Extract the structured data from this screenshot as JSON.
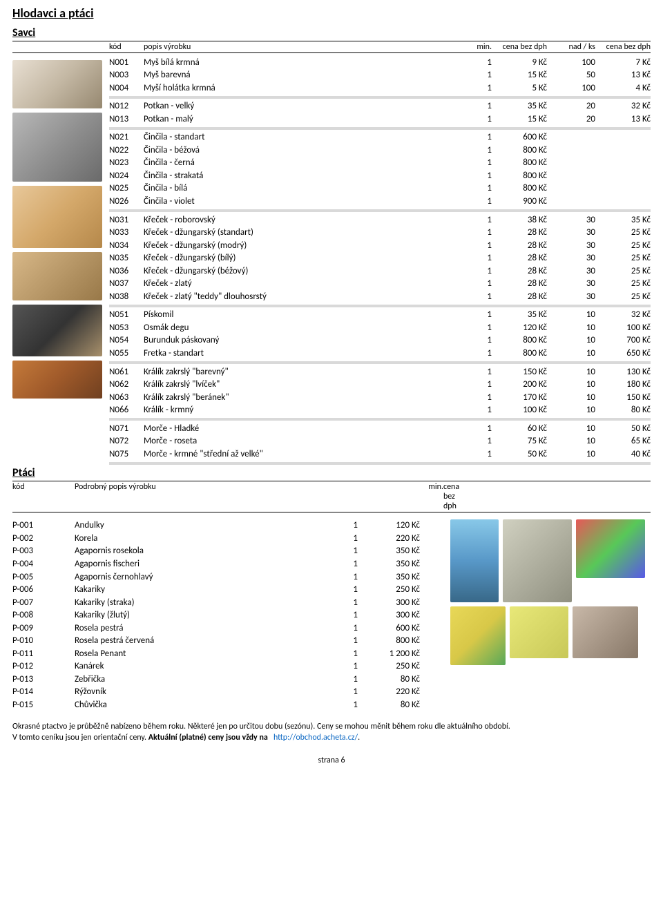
{
  "title": "Hlodavci a ptáci",
  "savci": {
    "title": "Savci",
    "header": {
      "kod": "kód",
      "popis": "popis výrobku",
      "min": "min.",
      "cena": "cena bez dph",
      "nad": "nad / ks",
      "cena2": "cena bez dph"
    },
    "groups": [
      [
        {
          "kod": "N001",
          "popis": "Myš bílá krmná",
          "min": "1",
          "cena": "9 Kč",
          "nad": "100",
          "cena2": "7 Kč"
        },
        {
          "kod": "N003",
          "popis": "Myš barevná",
          "min": "1",
          "cena": "15 Kč",
          "nad": "50",
          "cena2": "13 Kč"
        },
        {
          "kod": "N004",
          "popis": "Myší holátka krmná",
          "min": "1",
          "cena": "5 Kč",
          "nad": "100",
          "cena2": "4 Kč"
        }
      ],
      [
        {
          "kod": "N012",
          "popis": "Potkan - velký",
          "min": "1",
          "cena": "35 Kč",
          "nad": "20",
          "cena2": "32 Kč"
        },
        {
          "kod": "N013",
          "popis": "Potkan -  malý",
          "min": "1",
          "cena": "15 Kč",
          "nad": "20",
          "cena2": "13 Kč"
        }
      ],
      [
        {
          "kod": "N021",
          "popis": "Činčila - standart",
          "min": "1",
          "cena": "600 Kč",
          "nad": "",
          "cena2": ""
        },
        {
          "kod": "N022",
          "popis": "Činčila - béžová",
          "min": "1",
          "cena": "800 Kč",
          "nad": "",
          "cena2": ""
        },
        {
          "kod": "N023",
          "popis": "Činčila - černá",
          "min": "1",
          "cena": "800 Kč",
          "nad": "",
          "cena2": ""
        },
        {
          "kod": "N024",
          "popis": "Činčila - strakatá",
          "min": "1",
          "cena": "800 Kč",
          "nad": "",
          "cena2": ""
        },
        {
          "kod": "N025",
          "popis": "Činčila - bílá",
          "min": "1",
          "cena": "800 Kč",
          "nad": "",
          "cena2": ""
        },
        {
          "kod": "N026",
          "popis": "Činčila - violet",
          "min": "1",
          "cena": "900 Kč",
          "nad": "",
          "cena2": ""
        }
      ],
      [
        {
          "kod": "N031",
          "popis": "Křeček - roborovský",
          "min": "1",
          "cena": "38 Kč",
          "nad": "30",
          "cena2": "35 Kč"
        },
        {
          "kod": "N033",
          "popis": "Křeček - džungarský (standart)",
          "min": "1",
          "cena": "28 Kč",
          "nad": "30",
          "cena2": "25 Kč"
        },
        {
          "kod": "N034",
          "popis": "Křeček - džungarský (modrý)",
          "min": "1",
          "cena": "28 Kč",
          "nad": "30",
          "cena2": "25 Kč"
        },
        {
          "kod": "N035",
          "popis": "Křeček - džungarský (bílý)",
          "min": "1",
          "cena": "28 Kč",
          "nad": "30",
          "cena2": "25 Kč"
        },
        {
          "kod": "N036",
          "popis": "Křeček - džungarský (béžový)",
          "min": "1",
          "cena": "28 Kč",
          "nad": "30",
          "cena2": "25 Kč"
        },
        {
          "kod": "N037",
          "popis": "Křeček - zlatý",
          "min": "1",
          "cena": "28 Kč",
          "nad": "30",
          "cena2": "25 Kč"
        },
        {
          "kod": "N038",
          "popis": "Křeček - zlatý \"teddy\" dlouhosrstý",
          "min": "1",
          "cena": "28 Kč",
          "nad": "30",
          "cena2": "25 Kč"
        }
      ],
      [
        {
          "kod": "N051",
          "popis": "Pískomil",
          "min": "1",
          "cena": "35 Kč",
          "nad": "10",
          "cena2": "32 Kč"
        },
        {
          "kod": "N053",
          "popis": "Osmák degu",
          "min": "1",
          "cena": "120 Kč",
          "nad": "10",
          "cena2": "100 Kč"
        },
        {
          "kod": "N054",
          "popis": "Burunduk páskovaný",
          "min": "1",
          "cena": "800 Kč",
          "nad": "10",
          "cena2": "700 Kč"
        },
        {
          "kod": "N055",
          "popis": "Fretka - standart",
          "min": "1",
          "cena": "800 Kč",
          "nad": "10",
          "cena2": "650 Kč"
        }
      ],
      [
        {
          "kod": "N061",
          "popis": "Králík zakrslý \"barevný\"",
          "min": "1",
          "cena": "150 Kč",
          "nad": "10",
          "cena2": "130 Kč"
        },
        {
          "kod": "N062",
          "popis": "Králík zakrslý \"lvíček\"",
          "min": "1",
          "cena": "200 Kč",
          "nad": "10",
          "cena2": "180 Kč"
        },
        {
          "kod": "N063",
          "popis": "Králík zakrslý \"beránek\"",
          "min": "1",
          "cena": "170 Kč",
          "nad": "10",
          "cena2": "150 Kč"
        },
        {
          "kod": "N066",
          "popis": "Králík - krmný",
          "min": "1",
          "cena": "100 Kč",
          "nad": "10",
          "cena2": "80 Kč"
        }
      ],
      [
        {
          "kod": "N071",
          "popis": "Morče - Hladké",
          "min": "1",
          "cena": "60 Kč",
          "nad": "10",
          "cena2": "50 Kč"
        },
        {
          "kod": "N072",
          "popis": "Morče - roseta",
          "min": "1",
          "cena": "75 Kč",
          "nad": "10",
          "cena2": "65 Kč"
        },
        {
          "kod": "N075",
          "popis": "Morče - krmné \"střední až velké\"",
          "min": "1",
          "cena": "50 Kč",
          "nad": "10",
          "cena2": "40 Kč"
        }
      ]
    ]
  },
  "ptaci": {
    "title": "Ptáci",
    "header": {
      "kod": "kód",
      "popis": "Podrobný popis výrobku",
      "min": "min.",
      "cena": "cena bez dph"
    },
    "rows": [
      {
        "kod": "P-001",
        "popis": "Andulky",
        "min": "1",
        "cena": "120 Kč"
      },
      {
        "kod": "P-002",
        "popis": "Korela",
        "min": "1",
        "cena": "220 Kč"
      },
      {
        "kod": "P-003",
        "popis": "Agapornis rosekola",
        "min": "1",
        "cena": "350 Kč"
      },
      {
        "kod": "P-004",
        "popis": "Agapornis fischeri",
        "min": "1",
        "cena": "350 Kč"
      },
      {
        "kod": "P-005",
        "popis": "Agapornis černohlavý",
        "min": "1",
        "cena": "350 Kč"
      },
      {
        "kod": "P-006",
        "popis": "Kakariky",
        "min": "1",
        "cena": "250 Kč"
      },
      {
        "kod": "P-007",
        "popis": "Kakariky (straka)",
        "min": "1",
        "cena": "300 Kč"
      },
      {
        "kod": "P-008",
        "popis": "Kakariky (žlutý)",
        "min": "1",
        "cena": "300 Kč"
      },
      {
        "kod": "P-009",
        "popis": "Rosela pestrá",
        "min": "1",
        "cena": "600 Kč"
      },
      {
        "kod": "P-010",
        "popis": "Rosela pestrá červená",
        "min": "1",
        "cena": "800 Kč"
      },
      {
        "kod": "P-011",
        "popis": "Rosela Penant",
        "min": "1",
        "cena": "1 200 Kč"
      },
      {
        "kod": "P-012",
        "popis": "Kanárek",
        "min": "1",
        "cena": "250 Kč"
      },
      {
        "kod": "P-013",
        "popis": "Zebřička",
        "min": "1",
        "cena": "80 Kč"
      },
      {
        "kod": "P-014",
        "popis": "Rýžovník",
        "min": "1",
        "cena": "220 Kč"
      },
      {
        "kod": "P-015",
        "popis": "Chůvička",
        "min": "1",
        "cena": "80 Kč"
      }
    ]
  },
  "footnote": {
    "line1": "Okrasné ptactvo je průběžně nabízeno během roku. Některé jen po určitou dobu (sezónu). Ceny se mohou měnit během roku dle aktuálního období.",
    "line2a": "V tomto ceníku jsou jen orientační ceny. ",
    "line2b": "Aktuální (platné) ceny jsou vždy na",
    "link": "http://obchod.acheta.cz/",
    "dot": "."
  },
  "page": "strana 6"
}
